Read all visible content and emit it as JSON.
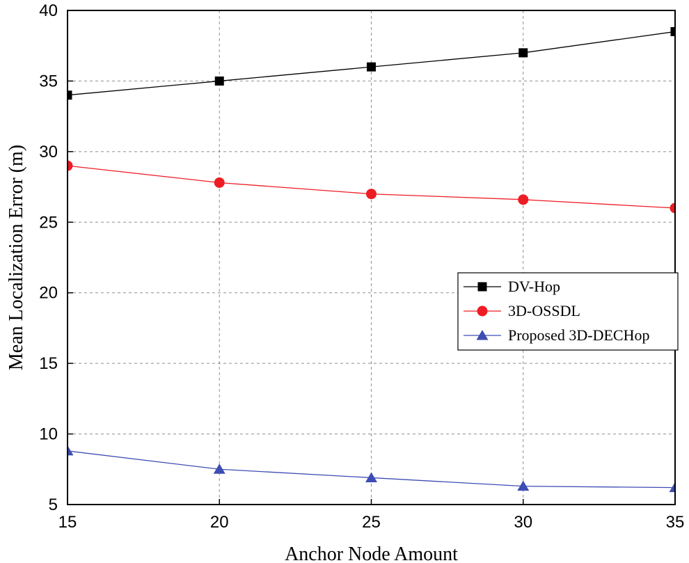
{
  "chart_data": {
    "type": "line",
    "title": "",
    "xlabel": "Anchor Node Amount",
    "ylabel": "Mean Localization Error (m)",
    "x": [
      15,
      20,
      25,
      30,
      35
    ],
    "xlim": [
      15,
      35
    ],
    "ylim": [
      5,
      40
    ],
    "xticks": [
      15,
      20,
      25,
      30,
      35
    ],
    "yticks": [
      5,
      10,
      15,
      20,
      25,
      30,
      35,
      40
    ],
    "grid": true,
    "legend_position": "right",
    "series": [
      {
        "name": "DV-Hop",
        "values": [
          34,
          35,
          36,
          37,
          38.5
        ],
        "color": "#000000",
        "marker": "square"
      },
      {
        "name": "3D-OSSDL",
        "values": [
          29,
          27.8,
          27,
          26.6,
          26
        ],
        "color": "#ee1c24",
        "marker": "circle"
      },
      {
        "name": "Proposed 3D-DECHop",
        "values": [
          8.8,
          7.5,
          6.9,
          6.3,
          6.2
        ],
        "color": "#3d4db3",
        "marker": "triangle"
      }
    ]
  }
}
